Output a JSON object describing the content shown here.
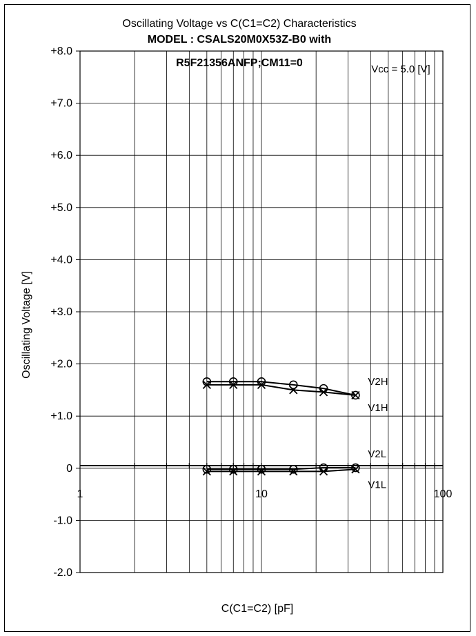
{
  "chart_data": {
    "type": "line",
    "title": "Oscillating Voltage vs C(C1=C2) Characteristics",
    "subtitle_lines": [
      "MODEL : CSALS20M0X53Z-B0 with",
      "R5F21356ANFP;CM11=0"
    ],
    "annotation": "Vcc = 5.0 [V]",
    "xlabel": "C(C1=C2) [pF]",
    "ylabel": "Oscillating Voltage [V]",
    "xscale": "log",
    "xlim": [
      1,
      100
    ],
    "ylim": [
      -2,
      8
    ],
    "x_tick_labels": [
      {
        "value": 1,
        "label": "1"
      },
      {
        "value": 10,
        "label": "10"
      },
      {
        "value": 100,
        "label": "100"
      }
    ],
    "y_tick_labels": [
      {
        "value": 8,
        "label": "+8.0"
      },
      {
        "value": 7,
        "label": "+7.0"
      },
      {
        "value": 6,
        "label": "+6.0"
      },
      {
        "value": 5,
        "label": "+5.0"
      },
      {
        "value": 4,
        "label": "+4.0"
      },
      {
        "value": 3,
        "label": "+3.0"
      },
      {
        "value": 2,
        "label": "+2.0"
      },
      {
        "value": 1,
        "label": "+1.0"
      },
      {
        "value": 0,
        "label": "0"
      },
      {
        "value": -1,
        "label": "-1.0"
      },
      {
        "value": -2,
        "label": "-2.0"
      }
    ],
    "grid": true,
    "x": [
      5,
      7,
      10,
      15,
      22,
      33
    ],
    "series": [
      {
        "name": "V2H",
        "marker": "circle",
        "values": [
          1.66,
          1.66,
          1.66,
          1.6,
          1.53,
          1.4
        ]
      },
      {
        "name": "V1H",
        "marker": "cross",
        "values": [
          1.6,
          1.6,
          1.6,
          1.5,
          1.46,
          1.4
        ]
      },
      {
        "name": "V2L",
        "marker": "circle",
        "values": [
          -0.02,
          -0.02,
          -0.02,
          -0.02,
          0.01,
          0.01
        ]
      },
      {
        "name": "V1L",
        "marker": "cross",
        "values": [
          -0.06,
          -0.06,
          -0.06,
          -0.06,
          -0.06,
          -0.02
        ]
      }
    ],
    "series_labels": [
      {
        "name": "V2H",
        "text": "V2H"
      },
      {
        "name": "V1H",
        "text": "V1H"
      },
      {
        "name": "V2L",
        "text": "V2L"
      },
      {
        "name": "V1L",
        "text": "V1L"
      }
    ],
    "line_color": "#000000"
  }
}
